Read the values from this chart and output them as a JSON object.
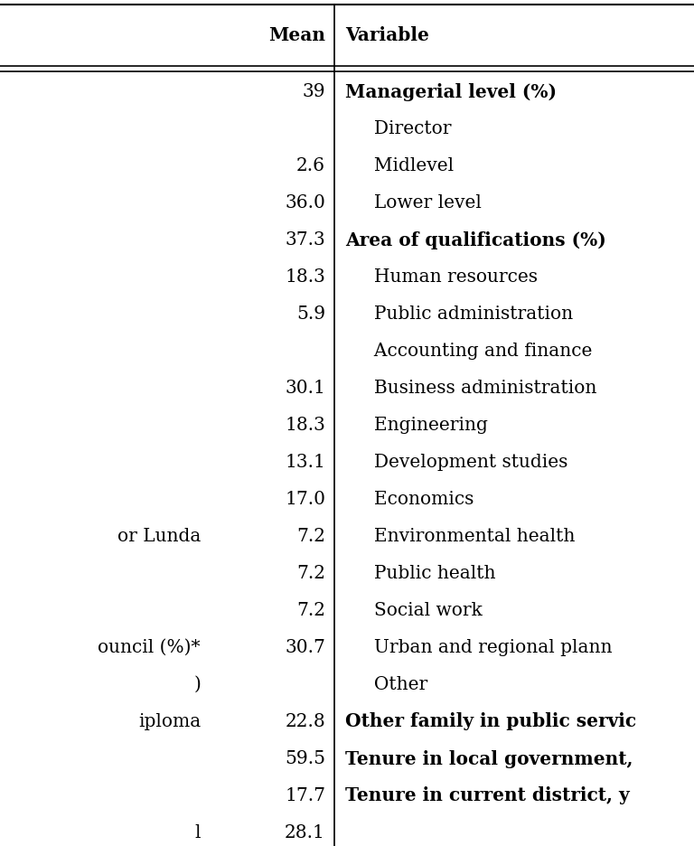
{
  "col2_header": "Mean",
  "col3_header": "Variable",
  "rows": [
    {
      "col1": "",
      "mean": "39",
      "variable": "Managerial level (%)",
      "bold_var": true
    },
    {
      "col1": "",
      "mean": "",
      "variable": "     Director",
      "bold_var": false
    },
    {
      "col1": "",
      "mean": "2.6",
      "variable": "     Midlevel",
      "bold_var": false
    },
    {
      "col1": "",
      "mean": "36.0",
      "variable": "     Lower level",
      "bold_var": false
    },
    {
      "col1": "",
      "mean": "37.3",
      "variable": "Area of qualifications (%)",
      "bold_var": true
    },
    {
      "col1": "",
      "mean": "18.3",
      "variable": "     Human resources",
      "bold_var": false
    },
    {
      "col1": "",
      "mean": "5.9",
      "variable": "     Public administration",
      "bold_var": false
    },
    {
      "col1": "",
      "mean": "",
      "variable": "     Accounting and finance",
      "bold_var": false
    },
    {
      "col1": "",
      "mean": "30.1",
      "variable": "     Business administration",
      "bold_var": false
    },
    {
      "col1": "",
      "mean": "18.3",
      "variable": "     Engineering",
      "bold_var": false
    },
    {
      "col1": "",
      "mean": "13.1",
      "variable": "     Development studies",
      "bold_var": false
    },
    {
      "col1": "",
      "mean": "17.0",
      "variable": "     Economics",
      "bold_var": false
    },
    {
      "col1": "or Lunda",
      "mean": "7.2",
      "variable": "     Environmental health",
      "bold_var": false
    },
    {
      "col1": "",
      "mean": "7.2",
      "variable": "     Public health",
      "bold_var": false
    },
    {
      "col1": "",
      "mean": "7.2",
      "variable": "     Social work",
      "bold_var": false
    },
    {
      "col1": "ouncil (%)*",
      "mean": "30.7",
      "variable": "     Urban and regional plann",
      "bold_var": false
    },
    {
      "col1": ")",
      "mean": "",
      "variable": "     Other",
      "bold_var": false
    },
    {
      "col1": "iploma",
      "mean": "22.8",
      "variable": "Other family in public servic",
      "bold_var": true
    },
    {
      "col1": "",
      "mean": "59.5",
      "variable": "Tenure in local government,",
      "bold_var": true
    },
    {
      "col1": "",
      "mean": "17.7",
      "variable": "Tenure in current district, y",
      "bold_var": true
    },
    {
      "col1": "l",
      "mean": "28.1",
      "variable": "",
      "bold_var": false
    }
  ],
  "background_color": "#ffffff",
  "text_color": "#000000",
  "line_color": "#000000",
  "font_size": 14.5,
  "header_font_size": 14.5
}
